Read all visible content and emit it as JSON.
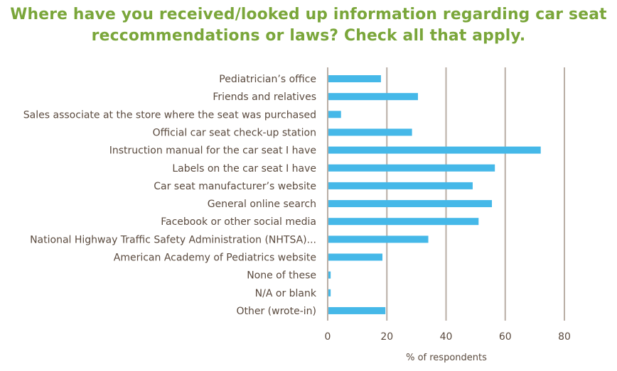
{
  "chart_data": {
    "type": "bar",
    "orientation": "horizontal",
    "title_lines": [
      "Where have you received/looked up information regarding car seat",
      "reccommendations or laws? Check all that apply."
    ],
    "xlabel": "% of respondents",
    "ylabel": "",
    "xlim": [
      0,
      80
    ],
    "xticks": [
      "0",
      "20",
      "40",
      "60",
      "80"
    ],
    "grid": "vertical",
    "legend": "none",
    "categories": [
      "Pediatrician’s office",
      "Friends and relatives",
      "Sales associate at the store where the seat was purchased",
      "Official car seat check-up station",
      "Instruction manual for the car seat I have",
      "Labels on the car seat I have",
      "Car seat manufacturer’s website",
      "General online search",
      "Facebook or other social media",
      "National Highway Traffic Safety Administration (NHTSA)...",
      "American Academy of Pediatrics website",
      "None of these",
      "N/A or blank",
      "Other (wrote-in)"
    ],
    "values": [
      18,
      30.5,
      4.5,
      28.5,
      72,
      56.5,
      49,
      55.5,
      51,
      34,
      18.5,
      1,
      1,
      19.5
    ],
    "colors": {
      "bar": "#45b8e8",
      "grid": "#b9aea5",
      "title": "#7aa63a",
      "text": "#5a4a3e"
    }
  }
}
